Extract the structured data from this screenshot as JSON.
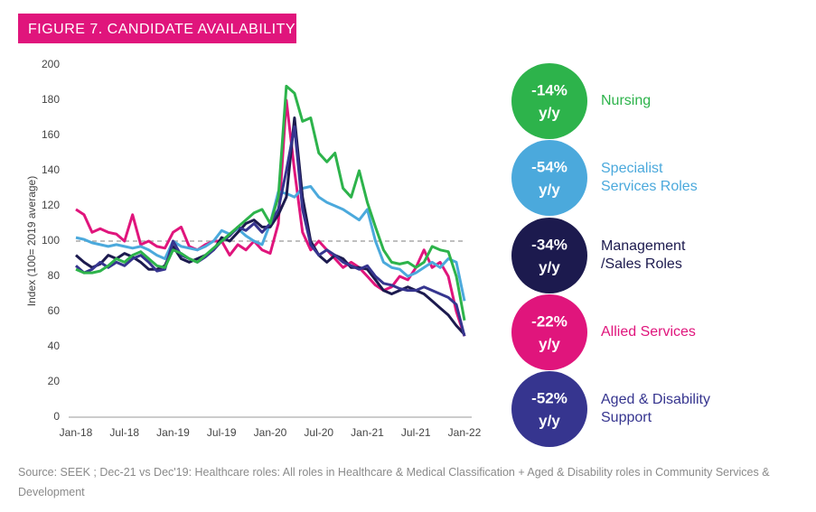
{
  "chart_data": {
    "type": "line",
    "title": "FIGURE 7. CANDIDATE AVAILABILITY",
    "y_label": "Index (100= 2019 average)",
    "source": "Source: SEEK ; Dec-21 vs Dec'19: Healthcare roles: All roles in Healthcare & Medical Classification +  Aged & Disability roles in Community Services & Development",
    "categories": [
      "Jan-18",
      null,
      null,
      null,
      null,
      null,
      "Jul-18",
      null,
      null,
      null,
      null,
      null,
      "Jan-19",
      null,
      null,
      null,
      null,
      null,
      "Jul-19",
      null,
      null,
      null,
      null,
      null,
      "Jan-20",
      null,
      null,
      null,
      null,
      null,
      "Jul-20",
      null,
      null,
      null,
      null,
      null,
      "Jan-21",
      null,
      null,
      null,
      null,
      null,
      "Jul-21",
      null,
      null,
      null,
      null,
      null,
      "Jan-22"
    ],
    "ylim": [
      0,
      200
    ],
    "yticks": [
      0,
      20,
      40,
      60,
      80,
      100,
      120,
      140,
      160,
      180,
      200
    ],
    "reference": 100,
    "badge_unit": "y/y",
    "series": [
      {
        "name": "Allied Services",
        "color": "#e0157c",
        "change": -22,
        "change_label": "-22%",
        "values": [
          118,
          115,
          105,
          107,
          105,
          104,
          100,
          115,
          98,
          100,
          97,
          96,
          105,
          108,
          97,
          95,
          98,
          100,
          100,
          92,
          98,
          95,
          100,
          95,
          93,
          110,
          180,
          140,
          105,
          95,
          100,
          95,
          90,
          85,
          88,
          85,
          80,
          75,
          72,
          74,
          80,
          78,
          85,
          95,
          85,
          88,
          80,
          60,
          46
        ]
      },
      {
        "name": "Specialist Services Roles",
        "color": "#4ba9dc",
        "change": -54,
        "change_label": "-54%",
        "values": [
          102,
          101,
          99,
          98,
          97,
          98,
          97,
          96,
          97,
          95,
          92,
          90,
          100,
          97,
          96,
          95,
          97,
          100,
          106,
          104,
          107,
          103,
          100,
          98,
          110,
          128,
          127,
          125,
          130,
          131,
          125,
          122,
          120,
          118,
          115,
          112,
          118,
          100,
          88,
          85,
          84,
          80,
          82,
          85,
          88,
          85,
          90,
          88,
          66
        ]
      },
      {
        "name": "Management /Sales Roles",
        "color": "#1c1a4e",
        "change": -34,
        "change_label": "-34%",
        "values": [
          92,
          88,
          85,
          87,
          92,
          90,
          93,
          91,
          88,
          84,
          84,
          86,
          97,
          90,
          88,
          90,
          92,
          95,
          102,
          100,
          105,
          110,
          112,
          108,
          108,
          115,
          125,
          170,
          125,
          100,
          92,
          88,
          92,
          90,
          85,
          85,
          84,
          78,
          72,
          70,
          72,
          74,
          72,
          70,
          66,
          62,
          58,
          52,
          47
        ]
      },
      {
        "name": "Aged & Disability Support",
        "color": "#36358f",
        "change": -52,
        "change_label": "-52%",
        "values": [
          86,
          82,
          84,
          88,
          85,
          88,
          86,
          90,
          92,
          88,
          83,
          84,
          100,
          92,
          90,
          88,
          91,
          95,
          100,
          103,
          108,
          106,
          110,
          105,
          110,
          118,
          140,
          165,
          118,
          98,
          92,
          95,
          92,
          88,
          86,
          84,
          86,
          80,
          76,
          75,
          73,
          72,
          72,
          74,
          72,
          70,
          68,
          64,
          46
        ]
      },
      {
        "name": "Nursing",
        "color": "#2db34b",
        "change": -14,
        "change_label": "-14%",
        "values": [
          84,
          82,
          82,
          83,
          86,
          90,
          88,
          92,
          94,
          90,
          86,
          85,
          95,
          93,
          90,
          88,
          92,
          96,
          100,
          104,
          108,
          112,
          116,
          118,
          110,
          125,
          188,
          184,
          168,
          170,
          150,
          145,
          150,
          130,
          125,
          140,
          122,
          108,
          95,
          88,
          87,
          88,
          85,
          88,
          97,
          95,
          94,
          80,
          55
        ]
      }
    ],
    "legend_order": [
      4,
      1,
      2,
      0,
      3
    ]
  }
}
